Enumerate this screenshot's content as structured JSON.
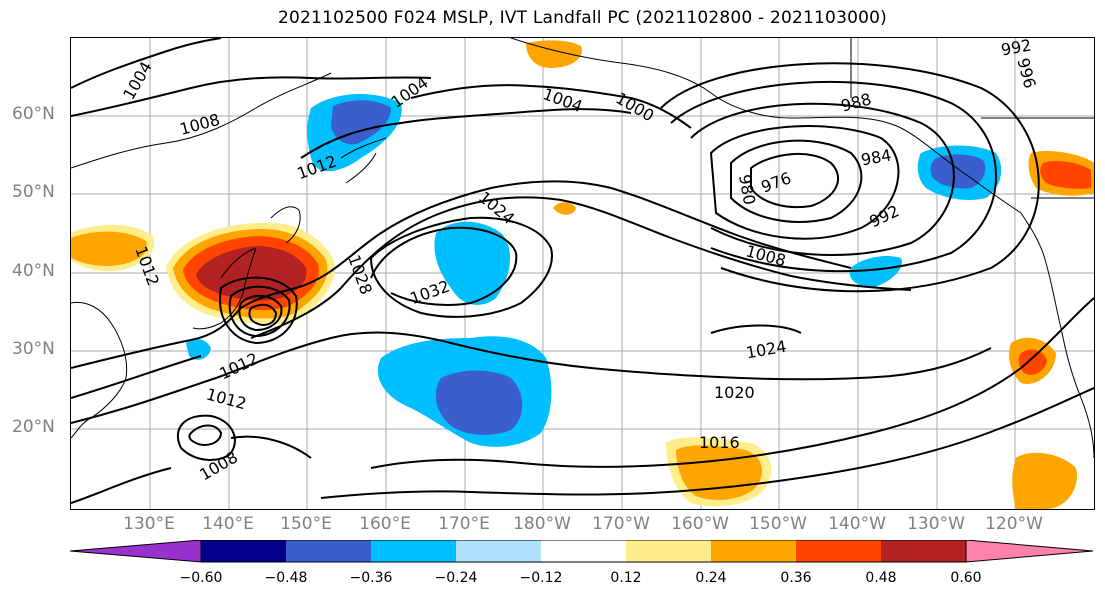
{
  "title": "2021102500 F024 MSLP, IVT Landfall PC (2021102800 - 2021103000)",
  "lat_labels": [
    "60°N",
    "50°N",
    "40°N",
    "30°N",
    "20°N"
  ],
  "lon_labels": [
    "130°E",
    "140°E",
    "150°E",
    "160°E",
    "170°E",
    "180°W",
    "170°W",
    "160°W",
    "150°W",
    "140°W",
    "130°W",
    "120°W"
  ],
  "contour_labels": [
    "1004",
    "1008",
    "1012",
    "1004",
    "1004",
    "1000",
    "988",
    "992",
    "996",
    "984",
    "976",
    "980",
    "992",
    "1024",
    "1032",
    "1028",
    "1012",
    "1012",
    "1008",
    "1008",
    "1024",
    "1020",
    "1016",
    "1012"
  ],
  "colorbar": {
    "ticks": [
      "−0.60",
      "−0.48",
      "−0.36",
      "−0.24",
      "−0.12",
      "0.12",
      "0.24",
      "0.36",
      "0.48",
      "0.60"
    ],
    "colors": [
      "#9932CC",
      "#00008B",
      "#3A5FCD",
      "#00BFFF",
      "#B0E2FF",
      "#FFFFFF",
      "#FFEC8B",
      "#FFA500",
      "#FF4500",
      "#B22222",
      "#FF82AB"
    ]
  },
  "palette": {
    "neg_strong": "#3A5FCD",
    "neg_mid": "#00BFFF",
    "neg_weak": "#B0E2FF",
    "pos_weak": "#FFEC8B",
    "pos_mid": "#FFA500",
    "pos_strong": "#FF4500",
    "pos_max": "#B22222"
  }
}
